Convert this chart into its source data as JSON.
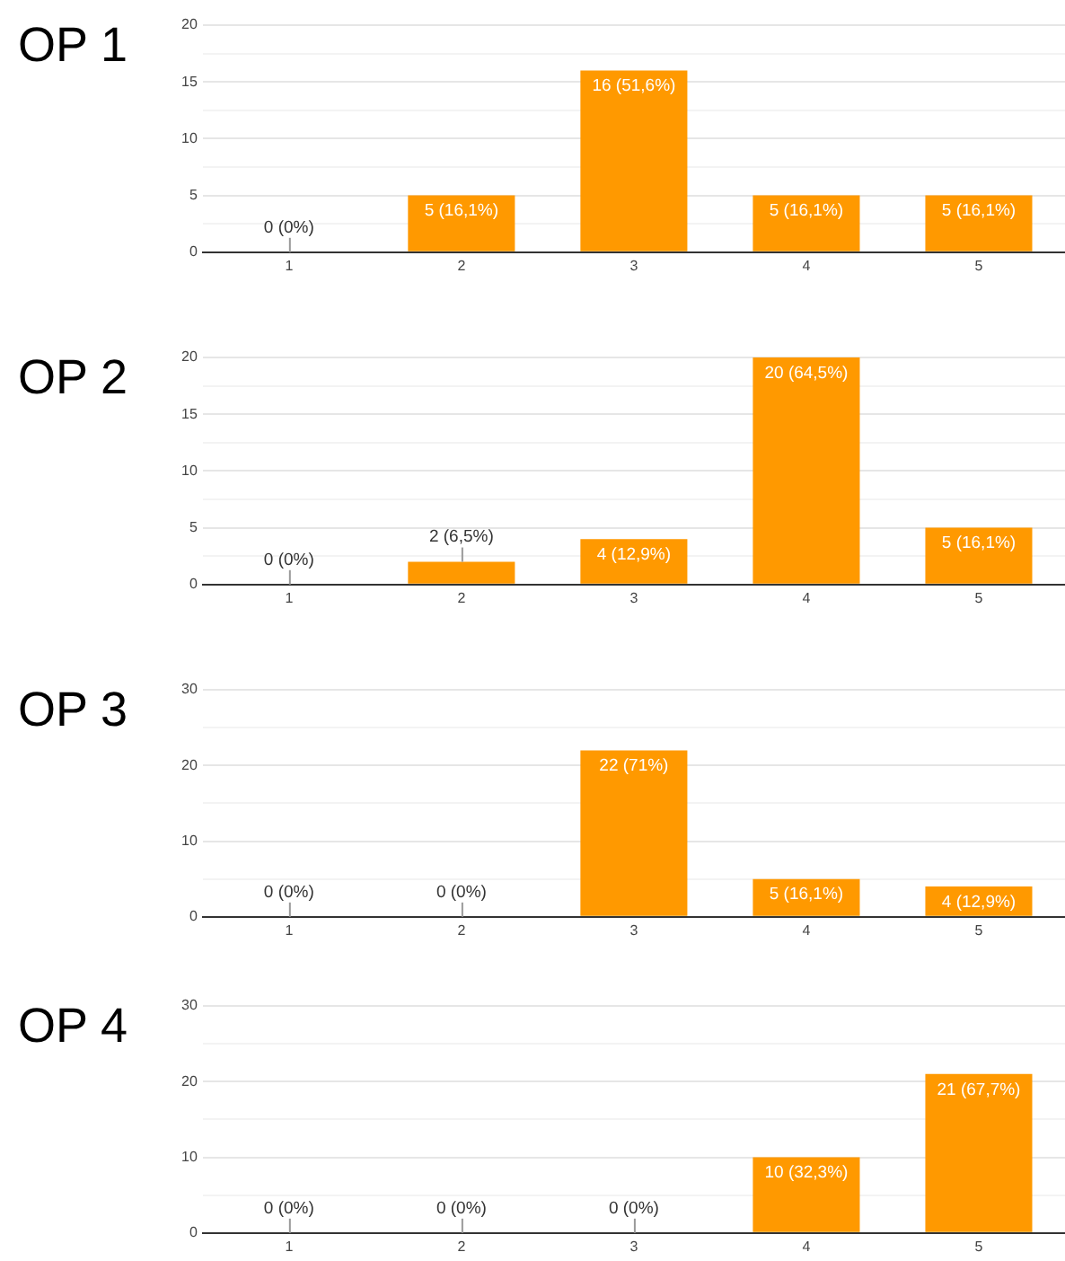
{
  "chart_data": [
    {
      "type": "bar",
      "title": "OP 1",
      "categories": [
        "1",
        "2",
        "3",
        "4",
        "5"
      ],
      "values": [
        0,
        5,
        16,
        5,
        5
      ],
      "value_labels": [
        "0 (0%)",
        "5 (16,1%)",
        "16 (51,6%)",
        "5 (16,1%)",
        "5 (16,1%)"
      ],
      "color": "#ff9900",
      "ylim": [
        0,
        20
      ],
      "yticks": [
        0,
        {
          "value": 2.5,
          "label": null
        },
        5,
        {
          "value": 7.5,
          "label": null
        },
        10,
        {
          "value": 12.5,
          "label": null
        },
        15,
        {
          "value": 17.5,
          "label": null
        },
        20
      ],
      "grid": "y"
    },
    {
      "type": "bar",
      "title": "OP 2",
      "categories": [
        "1",
        "2",
        "3",
        "4",
        "5"
      ],
      "values": [
        0,
        2,
        4,
        20,
        5
      ],
      "value_labels": [
        "0 (0%)",
        "2 (6,5%)",
        "4 (12,9%)",
        "20 (64,5%)",
        "5 (16,1%)"
      ],
      "color": "#ff9900",
      "ylim": [
        0,
        20
      ],
      "yticks": [
        0,
        {
          "value": 2.5,
          "label": null
        },
        5,
        {
          "value": 7.5,
          "label": null
        },
        10,
        {
          "value": 12.5,
          "label": null
        },
        15,
        {
          "value": 17.5,
          "label": null
        },
        20
      ],
      "grid": "y"
    },
    {
      "type": "bar",
      "title": "OP 3",
      "categories": [
        "1",
        "2",
        "3",
        "4",
        "5"
      ],
      "values": [
        0,
        0,
        22,
        5,
        4
      ],
      "value_labels": [
        "0 (0%)",
        "0 (0%)",
        "22 (71%)",
        "5 (16,1%)",
        "4 (12,9%)"
      ],
      "color": "#ff9900",
      "ylim": [
        0,
        30
      ],
      "yticks": [
        0,
        {
          "value": 5,
          "label": null
        },
        10,
        {
          "value": 15,
          "label": null
        },
        20,
        {
          "value": 25,
          "label": null
        },
        30
      ],
      "grid": "y"
    },
    {
      "type": "bar",
      "title": "OP 4",
      "categories": [
        "1",
        "2",
        "3",
        "4",
        "5"
      ],
      "values": [
        0,
        0,
        0,
        10,
        21
      ],
      "value_labels": [
        "0 (0%)",
        "0 (0%)",
        "0 (0%)",
        "10 (32,3%)",
        "21 (67,7%)"
      ],
      "color": "#ff9900",
      "ylim": [
        0,
        30
      ],
      "yticks": [
        0,
        {
          "value": 5,
          "label": null
        },
        10,
        {
          "value": 15,
          "label": null
        },
        20,
        {
          "value": 25,
          "label": null
        },
        30
      ],
      "grid": "y"
    }
  ]
}
